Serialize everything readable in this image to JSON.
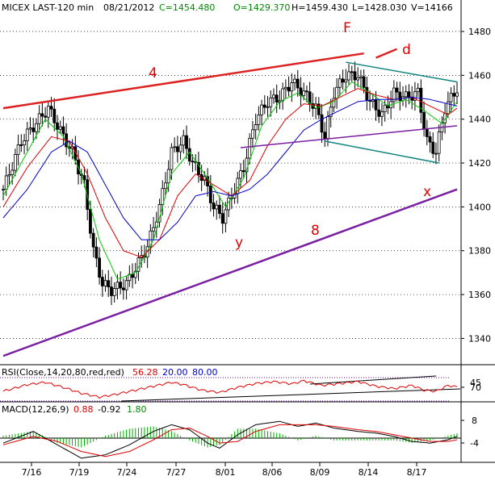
{
  "header": {
    "symbol": "MICEX LAST-120 min",
    "date": "08/21/2012",
    "close": "C=1454.480",
    "open": "O=1429.370",
    "high": "H=1459.430",
    "low": "L=1428.030",
    "volume": "V=14166"
  },
  "colors": {
    "price_bar": "#000000",
    "ma_fast": "#00cc00",
    "ma_mid": "#dd0000",
    "ma_slow": "#0000cc",
    "trend_red": "#dd2222",
    "trend_purple": "#7a1fa2",
    "trend_teal": "#11857f",
    "text_red": "#dd0000",
    "text_blue": "#0000cc",
    "text_green": "#008800",
    "grid": "#000000"
  },
  "annotations": {
    "line4": "4",
    "line8": "8",
    "wave_F": "F",
    "wave_d": "d",
    "wave_x": "x",
    "wave_y": "y"
  },
  "rsi_panel": {
    "name": "RSI(Close,14,20,80,red,red)",
    "value": "56.28",
    "lower": "20.00",
    "upper": "80.00",
    "ticks": [
      "70",
      "45"
    ]
  },
  "macd_panel": {
    "name": "MACD(12,26,9)",
    "macd": "0.88",
    "signal": "-0.92",
    "hist": "1.80",
    "ticks": [
      "8",
      "-4"
    ]
  },
  "chart_data": {
    "type": "candlestick",
    "interval": "120 min",
    "ylim": [
      1328,
      1487
    ],
    "yticks": [
      1340,
      1360,
      1380,
      1400,
      1420,
      1440,
      1460,
      1480
    ],
    "xticks": [
      "7/16",
      "7/19",
      "7/24",
      "7/27",
      "8/01",
      "8/06",
      "8/09",
      "8/14",
      "8/17"
    ],
    "price_keypoints": [
      [
        0,
        1408
      ],
      [
        6,
        1430
      ],
      [
        12,
        1440
      ],
      [
        15,
        1445
      ],
      [
        20,
        1432
      ],
      [
        23,
        1425
      ],
      [
        27,
        1410
      ],
      [
        30,
        1380
      ],
      [
        33,
        1365
      ],
      [
        36,
        1362
      ],
      [
        41,
        1365
      ],
      [
        44,
        1372
      ],
      [
        48,
        1382
      ],
      [
        52,
        1400
      ],
      [
        56,
        1425
      ],
      [
        60,
        1430
      ],
      [
        63,
        1420
      ],
      [
        67,
        1412
      ],
      [
        70,
        1400
      ],
      [
        73,
        1395
      ],
      [
        76,
        1405
      ],
      [
        80,
        1418
      ],
      [
        84,
        1440
      ],
      [
        88,
        1448
      ],
      [
        92,
        1450
      ],
      [
        96,
        1457
      ],
      [
        100,
        1452
      ],
      [
        104,
        1445
      ],
      [
        107,
        1432
      ],
      [
        110,
        1452
      ],
      [
        114,
        1460
      ],
      [
        118,
        1460
      ],
      [
        122,
        1448
      ],
      [
        126,
        1442
      ],
      [
        130,
        1452
      ],
      [
        134,
        1450
      ],
      [
        138,
        1452
      ],
      [
        141,
        1430
      ],
      [
        144,
        1425
      ],
      [
        147,
        1445
      ],
      [
        151,
        1454
      ]
    ],
    "moving_averages": [
      {
        "color": "green",
        "keypoints": [
          [
            0,
            1405
          ],
          [
            8,
            1425
          ],
          [
            14,
            1440
          ],
          [
            20,
            1432
          ],
          [
            26,
            1415
          ],
          [
            32,
            1385
          ],
          [
            38,
            1367
          ],
          [
            44,
            1370
          ],
          [
            50,
            1385
          ],
          [
            56,
            1415
          ],
          [
            62,
            1425
          ],
          [
            68,
            1413
          ],
          [
            74,
            1400
          ],
          [
            80,
            1413
          ],
          [
            86,
            1437
          ],
          [
            92,
            1448
          ],
          [
            98,
            1452
          ],
          [
            104,
            1445
          ],
          [
            110,
            1448
          ],
          [
            116,
            1457
          ],
          [
            122,
            1452
          ],
          [
            128,
            1446
          ],
          [
            134,
            1449
          ],
          [
            140,
            1444
          ],
          [
            146,
            1438
          ],
          [
            151,
            1448
          ]
        ]
      },
      {
        "color": "red",
        "keypoints": [
          [
            0,
            1400
          ],
          [
            8,
            1418
          ],
          [
            16,
            1432
          ],
          [
            22,
            1430
          ],
          [
            28,
            1415
          ],
          [
            34,
            1395
          ],
          [
            40,
            1380
          ],
          [
            46,
            1377
          ],
          [
            52,
            1385
          ],
          [
            58,
            1405
          ],
          [
            64,
            1415
          ],
          [
            70,
            1410
          ],
          [
            76,
            1405
          ],
          [
            82,
            1412
          ],
          [
            88,
            1428
          ],
          [
            94,
            1440
          ],
          [
            100,
            1447
          ],
          [
            106,
            1446
          ],
          [
            112,
            1450
          ],
          [
            118,
            1454
          ],
          [
            124,
            1451
          ],
          [
            130,
            1449
          ],
          [
            136,
            1450
          ],
          [
            142,
            1446
          ],
          [
            148,
            1442
          ],
          [
            151,
            1445
          ]
        ]
      },
      {
        "color": "blue",
        "keypoints": [
          [
            0,
            1395
          ],
          [
            8,
            1408
          ],
          [
            16,
            1425
          ],
          [
            22,
            1430
          ],
          [
            28,
            1425
          ],
          [
            34,
            1410
          ],
          [
            40,
            1395
          ],
          [
            46,
            1385
          ],
          [
            52,
            1385
          ],
          [
            58,
            1393
          ],
          [
            64,
            1405
          ],
          [
            70,
            1407
          ],
          [
            76,
            1405
          ],
          [
            82,
            1408
          ],
          [
            88,
            1415
          ],
          [
            94,
            1425
          ],
          [
            100,
            1435
          ],
          [
            106,
            1440
          ],
          [
            112,
            1444
          ],
          [
            118,
            1448
          ],
          [
            124,
            1449
          ],
          [
            130,
            1449
          ],
          [
            136,
            1450
          ],
          [
            142,
            1449
          ],
          [
            148,
            1447
          ],
          [
            151,
            1446
          ]
        ]
      }
    ],
    "trendlines": [
      {
        "label": "4",
        "color": "red",
        "from": [
          0,
          1445
        ],
        "to": [
          120,
          1470
        ]
      },
      {
        "label": "d",
        "color": "red",
        "from": [
          124,
          1468
        ],
        "to": [
          131,
          1472
        ]
      },
      {
        "label": "8",
        "color": "purple",
        "from": [
          0,
          1332
        ],
        "to": [
          151,
          1408
        ]
      },
      {
        "label": "",
        "color": "purple",
        "from": [
          79,
          1427
        ],
        "to": [
          151,
          1437
        ]
      },
      {
        "label": "",
        "color": "teal",
        "from": [
          114,
          1466
        ],
        "to": [
          151,
          1457
        ]
      },
      {
        "label": "",
        "color": "teal",
        "from": [
          107,
          1430
        ],
        "to": [
          145,
          1420
        ]
      }
    ],
    "rsi": {
      "ylim": [
        20,
        80
      ],
      "keypoints": [
        [
          0,
          45
        ],
        [
          8,
          62
        ],
        [
          14,
          68
        ],
        [
          20,
          55
        ],
        [
          26,
          40
        ],
        [
          32,
          30
        ],
        [
          38,
          38
        ],
        [
          44,
          48
        ],
        [
          50,
          58
        ],
        [
          56,
          68
        ],
        [
          60,
          62
        ],
        [
          66,
          48
        ],
        [
          72,
          42
        ],
        [
          78,
          55
        ],
        [
          84,
          65
        ],
        [
          90,
          70
        ],
        [
          96,
          64
        ],
        [
          100,
          72
        ],
        [
          106,
          60
        ],
        [
          112,
          65
        ],
        [
          118,
          70
        ],
        [
          124,
          58
        ],
        [
          130,
          52
        ],
        [
          136,
          60
        ],
        [
          140,
          48
        ],
        [
          144,
          45
        ],
        [
          148,
          60
        ],
        [
          151,
          56
        ]
      ]
    },
    "macd": {
      "ylim": [
        -14,
        13
      ],
      "macd": [
        [
          0,
          -3
        ],
        [
          10,
          4
        ],
        [
          18,
          -4
        ],
        [
          26,
          -12
        ],
        [
          34,
          -10
        ],
        [
          42,
          -4
        ],
        [
          50,
          4
        ],
        [
          56,
          8
        ],
        [
          62,
          5
        ],
        [
          68,
          -3
        ],
        [
          72,
          -6
        ],
        [
          78,
          2
        ],
        [
          84,
          8
        ],
        [
          92,
          10
        ],
        [
          98,
          7
        ],
        [
          104,
          9
        ],
        [
          110,
          6
        ],
        [
          118,
          4
        ],
        [
          124,
          3
        ],
        [
          130,
          1
        ],
        [
          136,
          -2
        ],
        [
          142,
          -3
        ],
        [
          148,
          -1
        ],
        [
          151,
          1
        ]
      ],
      "signal": [
        [
          0,
          -4
        ],
        [
          10,
          1
        ],
        [
          18,
          -2
        ],
        [
          26,
          -8
        ],
        [
          34,
          -11
        ],
        [
          42,
          -8
        ],
        [
          50,
          -1
        ],
        [
          56,
          5
        ],
        [
          62,
          6
        ],
        [
          68,
          1
        ],
        [
          72,
          -3
        ],
        [
          78,
          -2
        ],
        [
          84,
          4
        ],
        [
          92,
          8
        ],
        [
          98,
          8
        ],
        [
          104,
          8
        ],
        [
          110,
          7
        ],
        [
          118,
          5
        ],
        [
          124,
          4
        ],
        [
          130,
          2
        ],
        [
          136,
          0
        ],
        [
          142,
          -2
        ],
        [
          148,
          -2
        ],
        [
          151,
          -1
        ]
      ]
    }
  }
}
